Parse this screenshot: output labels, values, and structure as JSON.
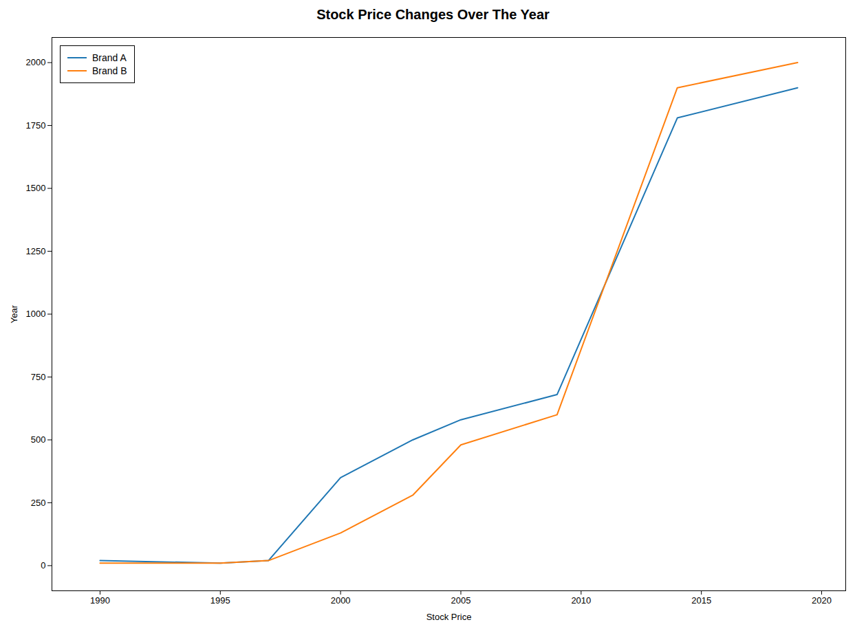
{
  "chart_data": {
    "type": "line",
    "title": "Stock Price Changes Over The Year",
    "x_label": "Stock Price",
    "y_label": "Year",
    "x": [
      1990,
      1995,
      1997,
      2000,
      2003,
      2005,
      2009,
      2014,
      2019
    ],
    "series": [
      {
        "name": "Brand A",
        "color": "#1f77b4",
        "values": [
          20,
          10,
          20,
          350,
          500,
          580,
          680,
          1780,
          1900
        ]
      },
      {
        "name": "Brand B",
        "color": "#ff7f0e",
        "values": [
          10,
          10,
          20,
          130,
          280,
          480,
          600,
          1900,
          2000
        ]
      }
    ],
    "xlim": [
      1988,
      2021
    ],
    "xticks": [
      1990,
      1995,
      2000,
      2005,
      2010,
      2015,
      2020
    ],
    "ylim": [
      -100,
      2100
    ],
    "yticks": [
      0,
      250,
      500,
      750,
      1000,
      1250,
      1500,
      1750,
      2000
    ],
    "grid": false,
    "legend": "upper left"
  }
}
